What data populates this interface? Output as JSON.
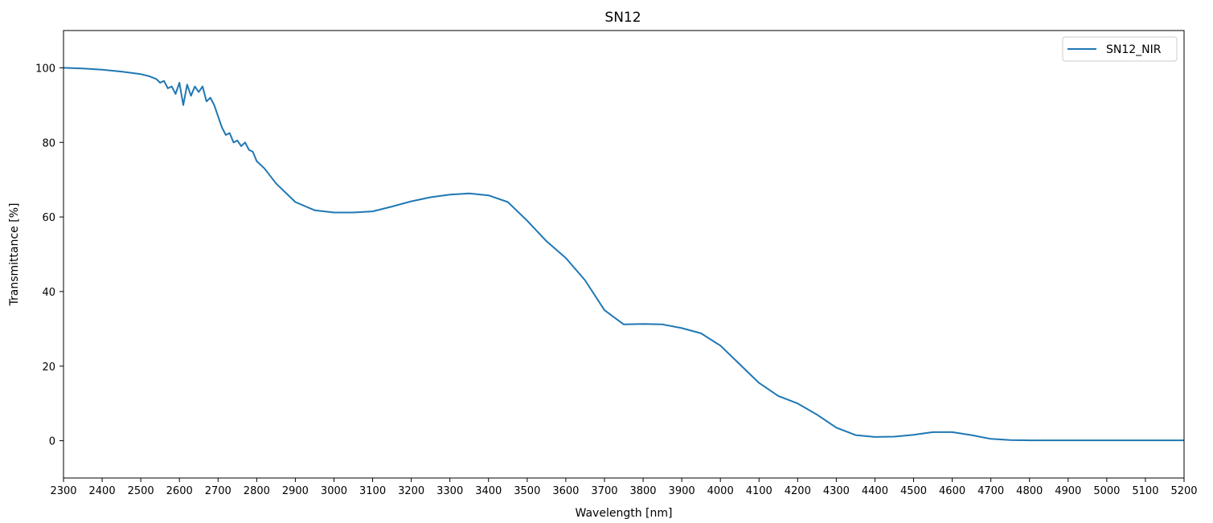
{
  "chart_data": {
    "type": "line",
    "title": "SN12",
    "xlabel": "Wavelength [nm]",
    "ylabel": "Transmittance [%]",
    "xlim": [
      2300,
      5200
    ],
    "ylim": [
      -10,
      110
    ],
    "x_ticks": [
      2300,
      2400,
      2500,
      2600,
      2700,
      2800,
      2900,
      3000,
      3100,
      3200,
      3300,
      3400,
      3500,
      3600,
      3700,
      3800,
      3900,
      4000,
      4100,
      4200,
      4300,
      4400,
      4500,
      4600,
      4700,
      4800,
      4900,
      5000,
      5100,
      5200
    ],
    "y_ticks": [
      0,
      20,
      40,
      60,
      80,
      100
    ],
    "grid": false,
    "legend_position": "top-right",
    "color": "#1f77b4",
    "series": [
      {
        "name": "SN12_NIR",
        "x": [
          2300,
          2350,
          2400,
          2450,
          2500,
          2520,
          2540,
          2550,
          2560,
          2570,
          2580,
          2590,
          2600,
          2610,
          2620,
          2630,
          2640,
          2650,
          2660,
          2670,
          2680,
          2690,
          2700,
          2710,
          2720,
          2730,
          2740,
          2750,
          2760,
          2770,
          2780,
          2790,
          2800,
          2820,
          2850,
          2900,
          2950,
          3000,
          3050,
          3100,
          3150,
          3200,
          3250,
          3300,
          3350,
          3400,
          3450,
          3500,
          3550,
          3600,
          3650,
          3700,
          3750,
          3800,
          3850,
          3900,
          3950,
          4000,
          4050,
          4100,
          4150,
          4200,
          4250,
          4300,
          4350,
          4400,
          4450,
          4500,
          4550,
          4600,
          4650,
          4700,
          4750,
          4800,
          4900,
          5000,
          5100,
          5200
        ],
        "y": [
          100,
          99.8,
          99.5,
          99,
          98.3,
          97.8,
          97,
          96,
          96.5,
          94.5,
          95,
          93,
          96,
          90,
          95.5,
          92.5,
          95,
          93.5,
          95,
          91,
          92,
          90,
          87,
          84,
          82,
          82.5,
          80,
          80.5,
          79,
          80,
          78,
          77.5,
          75,
          73,
          69,
          64,
          61.8,
          61.2,
          61.2,
          61.5,
          62.8,
          64.2,
          65.3,
          66,
          66.3,
          65.8,
          64,
          59,
          53.5,
          49,
          43,
          35,
          31.2,
          31.3,
          31.2,
          30.2,
          28.8,
          25.5,
          20.5,
          15.5,
          12,
          10,
          7,
          3.5,
          1.5,
          1,
          1.1,
          1.6,
          2.3,
          2.3,
          1.5,
          0.5,
          0.2,
          0.1,
          0.1,
          0.1,
          0.1,
          0.1
        ]
      }
    ]
  }
}
